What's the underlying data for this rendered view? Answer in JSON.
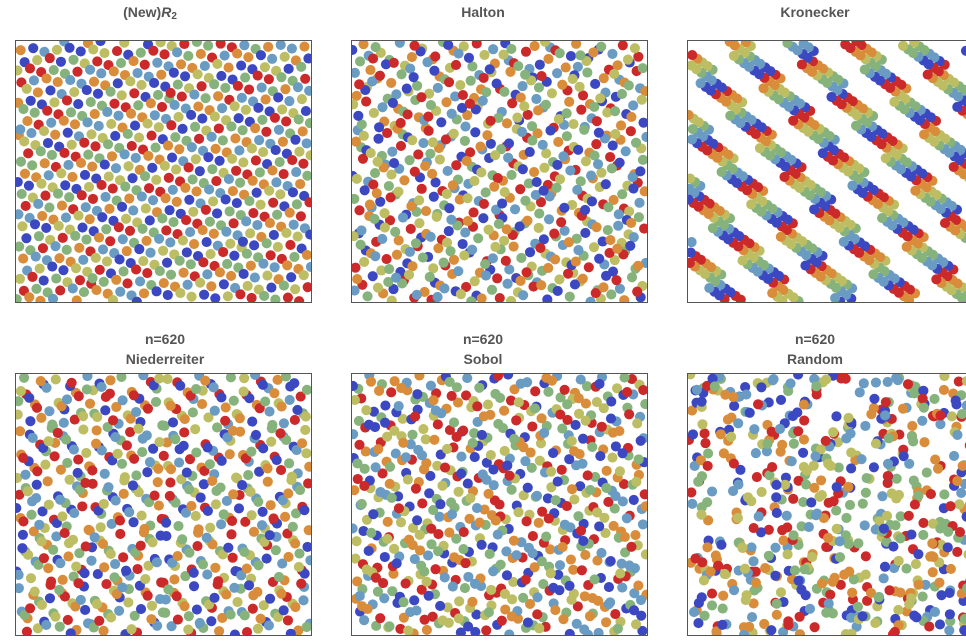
{
  "chart_data": [
    {
      "type": "scatter",
      "method": "r2",
      "n": 620,
      "title_prefix": "(New)",
      "title_symbol": "R",
      "title_subscript": "2",
      "subtitle": "",
      "xlim": [
        0,
        1
      ],
      "ylim": [
        0,
        1
      ],
      "axes_visible": false,
      "grid": false,
      "colors": [
        "#CC2A2A",
        "#D98D3A",
        "#BDBE63",
        "#86B27C",
        "#6A9BC3",
        "#3B48C2"
      ]
    },
    {
      "type": "scatter",
      "method": "halton",
      "n": 620,
      "title": "Halton",
      "subtitle": "",
      "xlim": [
        0,
        1
      ],
      "ylim": [
        0,
        1
      ],
      "axes_visible": false,
      "grid": false,
      "colors": [
        "#CC2A2A",
        "#D98D3A",
        "#BDBE63",
        "#86B27C",
        "#6A9BC3",
        "#3B48C2"
      ]
    },
    {
      "type": "scatter",
      "method": "kronecker",
      "n": 620,
      "title": "Kronecker",
      "subtitle": "",
      "xlim": [
        0,
        1
      ],
      "ylim": [
        0,
        1
      ],
      "axes_visible": false,
      "grid": false,
      "colors": [
        "#CC2A2A",
        "#D98D3A",
        "#BDBE63",
        "#86B27C",
        "#6A9BC3",
        "#3B48C2"
      ]
    },
    {
      "type": "scatter",
      "method": "niederreiter",
      "n": 620,
      "title": "Niederreiter",
      "subtitle": "n=620",
      "xlim": [
        0,
        1
      ],
      "ylim": [
        0,
        1
      ],
      "axes_visible": false,
      "grid": false,
      "colors": [
        "#CC2A2A",
        "#D98D3A",
        "#BDBE63",
        "#86B27C",
        "#6A9BC3",
        "#3B48C2"
      ]
    },
    {
      "type": "scatter",
      "method": "sobol",
      "n": 620,
      "title": "Sobol",
      "subtitle": "n=620",
      "xlim": [
        0,
        1
      ],
      "ylim": [
        0,
        1
      ],
      "axes_visible": false,
      "grid": false,
      "colors": [
        "#CC2A2A",
        "#D98D3A",
        "#BDBE63",
        "#86B27C",
        "#6A9BC3",
        "#3B48C2"
      ]
    },
    {
      "type": "scatter",
      "method": "random",
      "n": 620,
      "title": "Random",
      "subtitle": "n=620",
      "xlim": [
        0,
        1
      ],
      "ylim": [
        0,
        1
      ],
      "axes_visible": false,
      "grid": false,
      "colors": [
        "#CC2A2A",
        "#D98D3A",
        "#BDBE63",
        "#86B27C",
        "#6A9BC3",
        "#3B48C2"
      ]
    }
  ]
}
